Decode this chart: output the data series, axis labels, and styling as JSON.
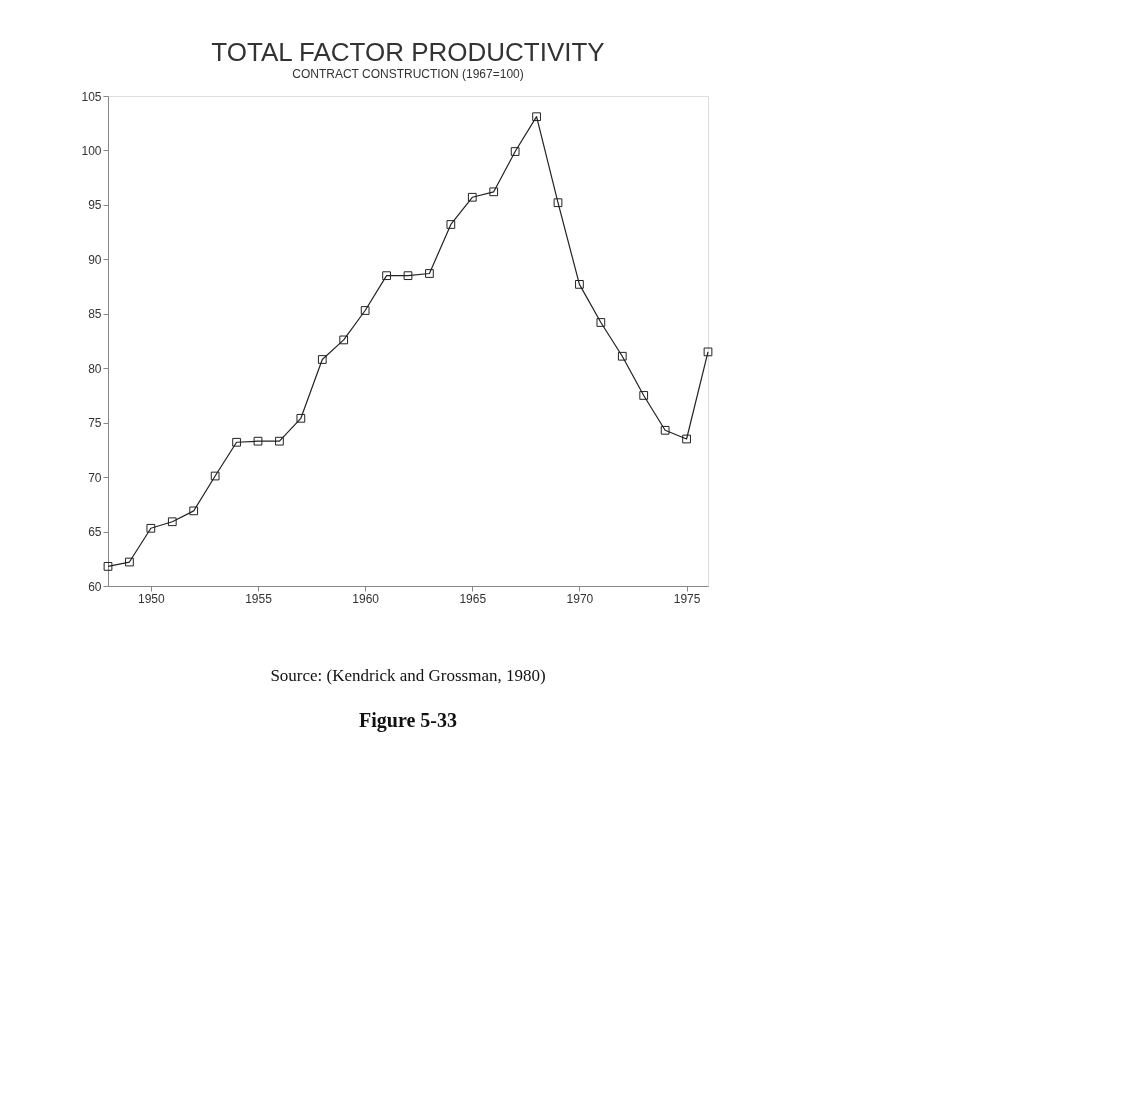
{
  "chart_data": {
    "type": "line",
    "title": "TOTAL FACTOR PRODUCTIVITY",
    "subtitle": "CONTRACT CONSTRUCTION (1967=100)",
    "x": [
      1948,
      1949,
      1950,
      1951,
      1952,
      1953,
      1954,
      1955,
      1956,
      1957,
      1958,
      1959,
      1960,
      1961,
      1962,
      1963,
      1964,
      1965,
      1966,
      1967,
      1968,
      1969,
      1970,
      1971,
      1972,
      1973,
      1974,
      1975,
      1976
    ],
    "series": [
      {
        "color": "#222222",
        "values": [
          61.8,
          62.2,
          65.3,
          65.9,
          66.9,
          70.1,
          73.2,
          73.3,
          73.3,
          75.4,
          80.8,
          82.6,
          85.3,
          88.5,
          88.5,
          88.7,
          93.2,
          95.7,
          96.2,
          99.9,
          103.1,
          95.2,
          87.7,
          84.2,
          81.1,
          77.5,
          74.3,
          73.5,
          81.5
        ]
      }
    ],
    "xlim": [
      1948,
      1976
    ],
    "xticks": [
      1950,
      1955,
      1960,
      1965,
      1970,
      1975
    ],
    "ylim": [
      60,
      105
    ],
    "yticks": [
      60,
      65,
      70,
      75,
      80,
      85,
      90,
      95,
      100,
      105
    ],
    "grid": false,
    "marker": "square",
    "line_style": "solid",
    "annotations": [
      "Source: (Kendrick and Grossman, 1980)",
      "Figure 5-33"
    ]
  }
}
